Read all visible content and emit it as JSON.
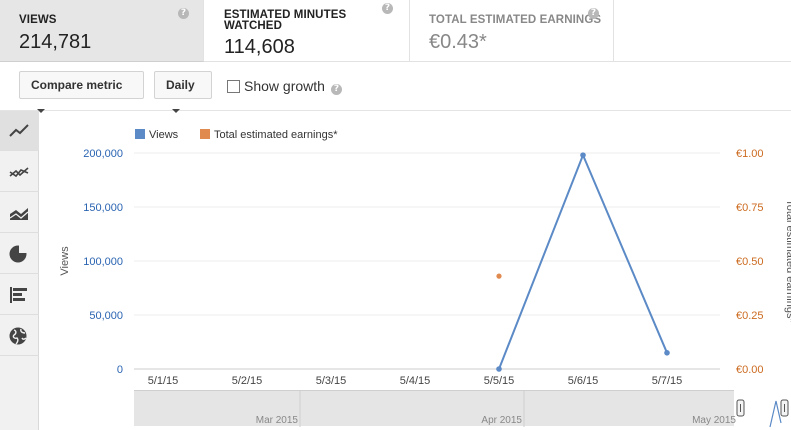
{
  "metrics": [
    {
      "label": "VIEWS",
      "value": "214,781",
      "help": "?"
    },
    {
      "label": "ESTIMATED MINUTES WATCHED",
      "value": "114,608",
      "help": "?"
    },
    {
      "label": "TOTAL ESTIMATED EARNINGS",
      "value": "€0.43*",
      "help": "?"
    }
  ],
  "toolbar": {
    "compare_label": "Compare metric",
    "interval_label": "Daily",
    "show_growth_label": "Show growth",
    "show_growth_checked": false,
    "help": "?"
  },
  "chart_types": [
    {
      "icon": "line-chart-icon",
      "active": true
    },
    {
      "icon": "multi-line-chart-icon",
      "active": false
    },
    {
      "icon": "stacked-area-chart-icon",
      "active": false
    },
    {
      "icon": "pie-chart-icon",
      "active": false
    },
    {
      "icon": "bar-chart-icon",
      "active": false
    },
    {
      "icon": "globe-map-icon",
      "active": false
    }
  ],
  "colors": {
    "views": "#5b8ac6",
    "earnings": "#e08a4f",
    "left_axis_text": "#2a64b2",
    "right_axis_text": "#cc6a1f"
  },
  "chart_data": {
    "type": "line",
    "legend": [
      "Views",
      "Total estimated earnings*"
    ],
    "legend_placement": "top-left",
    "grid": true,
    "x": [
      "5/1/15",
      "5/2/15",
      "5/3/15",
      "5/4/15",
      "5/5/15",
      "5/6/15",
      "5/7/15"
    ],
    "ylabel": "Views",
    "y2label": "Total estimated earnings*",
    "ylim": [
      0,
      200000
    ],
    "y_ticks": [
      "0",
      "50,000",
      "100,000",
      "150,000",
      "200,000"
    ],
    "y2lim": [
      0,
      1.0
    ],
    "y2_ticks": [
      "€0.00",
      "€0.25",
      "€0.50",
      "€0.75",
      "€1.00"
    ],
    "series": [
      {
        "name": "Views",
        "axis": "left",
        "points": [
          {
            "x": "5/5/15",
            "y": 0
          },
          {
            "x": "5/6/15",
            "y": 198000
          },
          {
            "x": "5/7/15",
            "y": 15000
          }
        ]
      },
      {
        "name": "Total estimated earnings*",
        "axis": "right",
        "points": [
          {
            "x": "5/5/15",
            "y": 0.43
          }
        ]
      }
    ],
    "navigator_labels": [
      "Mar 2015",
      "Apr 2015",
      "May 2015"
    ]
  }
}
